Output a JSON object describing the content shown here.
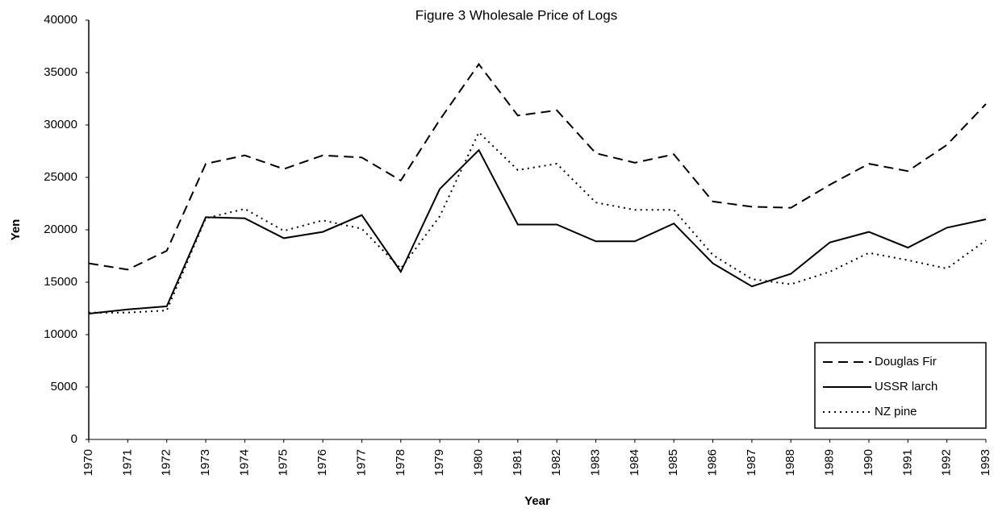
{
  "chart_data": {
    "type": "line",
    "title": "Figure 3    Wholesale Price of Logs",
    "x_label": "Year",
    "y_label": "Yen",
    "x": [
      1970,
      1971,
      1972,
      1973,
      1974,
      1975,
      1976,
      1977,
      1978,
      1979,
      1980,
      1981,
      1982,
      1983,
      1984,
      1985,
      1986,
      1987,
      1988,
      1989,
      1990,
      1991,
      1992,
      1993
    ],
    "xlim": [
      1970,
      1993
    ],
    "xticks": [
      1970,
      1971,
      1972,
      1973,
      1974,
      1975,
      1976,
      1977,
      1978,
      1979,
      1980,
      1981,
      1982,
      1983,
      1984,
      1985,
      1986,
      1987,
      1988,
      1989,
      1990,
      1991,
      1992,
      1993
    ],
    "ylim": [
      0,
      40000
    ],
    "yticks": [
      0,
      5000,
      10000,
      15000,
      20000,
      25000,
      30000,
      35000,
      40000
    ],
    "grid": false,
    "legend": "bottom-right",
    "series": [
      {
        "name": "Douglas Fir",
        "color": "#000000",
        "style": "dashed",
        "values": [
          16800,
          16200,
          18000,
          26300,
          27100,
          25800,
          27100,
          26900,
          24700,
          30500,
          35800,
          30900,
          31400,
          27300,
          26400,
          27200,
          22700,
          22200,
          22100,
          24300,
          26300,
          25600,
          28100,
          32000
        ]
      },
      {
        "name": "USSR larch",
        "color": "#000000",
        "style": "solid",
        "values": [
          12000,
          12400,
          12700,
          21200,
          21100,
          19200,
          19800,
          21400,
          16000,
          23900,
          27600,
          20500,
          20500,
          18900,
          18900,
          20600,
          16800,
          14600,
          15800,
          18800,
          19800,
          18300,
          20200,
          21000
        ]
      },
      {
        "name": "NZ pine",
        "color": "#000000",
        "style": "dotted",
        "values": [
          12100,
          12100,
          12300,
          21100,
          22000,
          19900,
          20900,
          20100,
          16300,
          21300,
          29300,
          25700,
          26300,
          22600,
          21900,
          21900,
          17600,
          15300,
          14800,
          16000,
          17800,
          17100,
          16300,
          19000
        ]
      }
    ]
  }
}
